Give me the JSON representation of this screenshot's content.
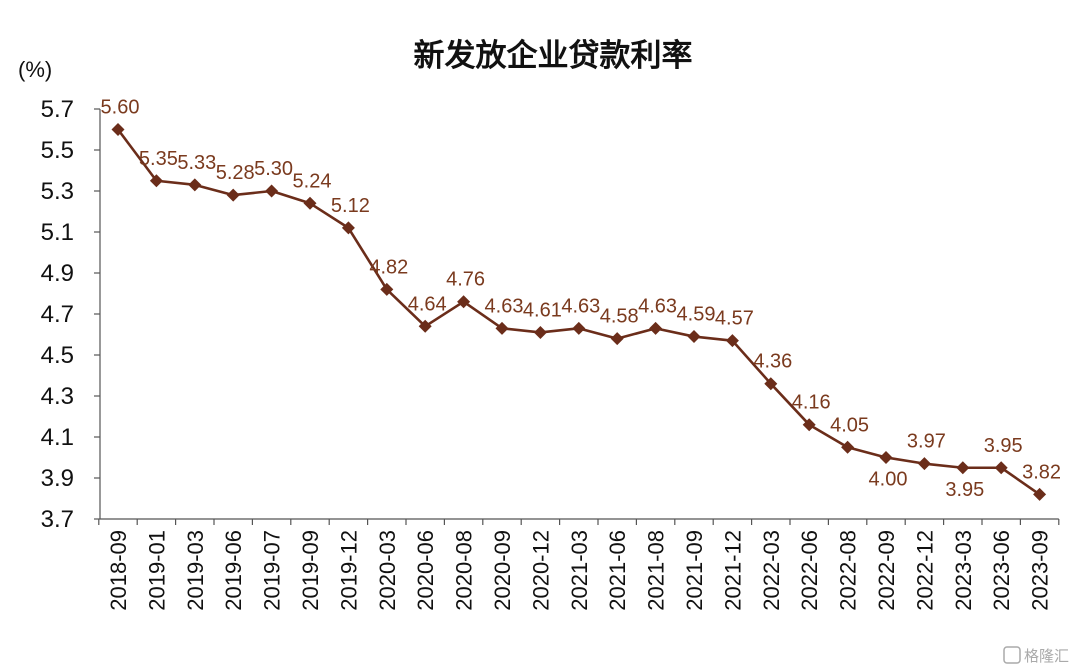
{
  "chart_data": {
    "type": "line",
    "title": "新发放企业贷款利率",
    "ylabel": "(%)",
    "xlabel": "",
    "ylim": [
      3.7,
      5.7
    ],
    "yticks": [
      "5.7",
      "5.5",
      "5.3",
      "5.1",
      "4.9",
      "4.7",
      "4.5",
      "4.3",
      "4.1",
      "3.9",
      "3.7"
    ],
    "categories": [
      "2018-09",
      "2019-01",
      "2019-03",
      "2019-06",
      "2019-07",
      "2019-09",
      "2019-12",
      "2020-03",
      "2020-06",
      "2020-08",
      "2020-09",
      "2020-12",
      "2021-03",
      "2021-06",
      "2021-08",
      "2021-09",
      "2021-12",
      "2022-03",
      "2022-06",
      "2022-08",
      "2022-09",
      "2022-12",
      "2023-03",
      "2023-06",
      "2023-09"
    ],
    "series": [
      {
        "values": [
          5.6,
          5.35,
          5.33,
          5.28,
          5.3,
          5.24,
          5.12,
          4.82,
          4.64,
          4.76,
          4.63,
          4.61,
          4.63,
          4.58,
          4.63,
          4.59,
          4.57,
          4.36,
          4.16,
          4.05,
          4.0,
          3.97,
          3.95,
          3.95,
          3.82
        ],
        "labels": [
          "5.60",
          "5.35",
          "5.33",
          "5.28",
          "5.30",
          "5.24",
          "5.12",
          "4.82",
          "4.64",
          "4.76",
          "4.63",
          "4.61",
          "4.63",
          "4.58",
          "4.63",
          "4.59",
          "4.57",
          "4.36",
          "4.16",
          "4.05",
          "4.00",
          "3.97",
          "3.95",
          "3.95",
          "3.82"
        ]
      }
    ],
    "label_positions": [
      "above",
      "above",
      "above",
      "above",
      "above",
      "above",
      "above",
      "above",
      "above",
      "above",
      "above",
      "above",
      "above",
      "above",
      "above",
      "above",
      "above",
      "above",
      "above",
      "above",
      "below",
      "above",
      "below",
      "above",
      "above"
    ],
    "line_color": "#6b2d1a",
    "label_color": "#7a3a1e",
    "grid": false,
    "legend": "none"
  },
  "watermark": "格隆汇"
}
